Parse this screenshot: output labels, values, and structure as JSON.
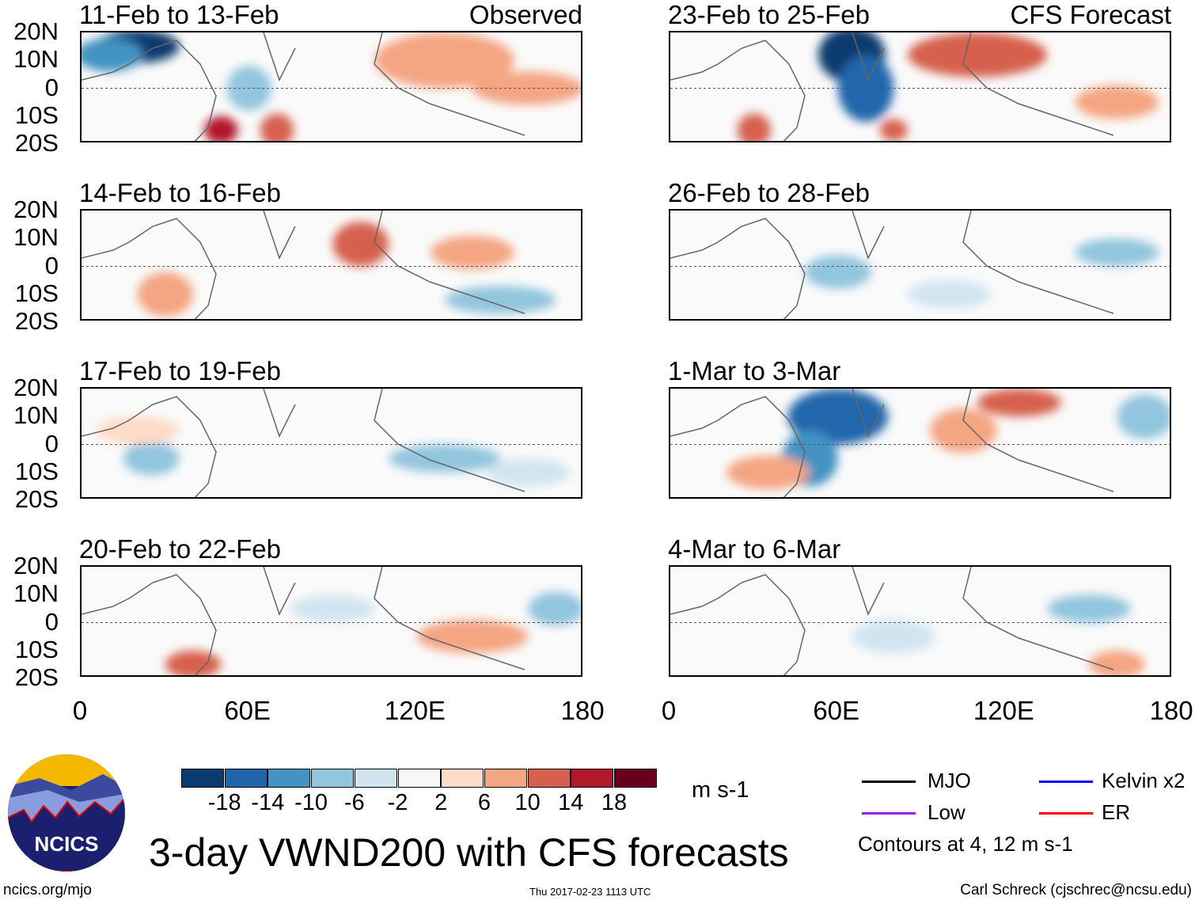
{
  "left_header": "Observed",
  "right_header": "CFS Forecast",
  "panels_left": [
    "11-Feb to 13-Feb",
    "14-Feb to 16-Feb",
    "17-Feb to 19-Feb",
    "20-Feb to 22-Feb"
  ],
  "panels_right": [
    "23-Feb to 25-Feb",
    "26-Feb to 28-Feb",
    "1-Mar to 3-Mar",
    "4-Mar to 6-Mar"
  ],
  "lat_ticks": [
    "20N",
    "10N",
    "0",
    "10S",
    "20S"
  ],
  "lon_ticks": [
    "0",
    "60E",
    "120E",
    "180"
  ],
  "colorbar": {
    "labels": [
      "-18",
      "-14",
      "-10",
      "-6",
      "-2",
      "2",
      "6",
      "10",
      "14",
      "18"
    ],
    "colors": [
      "#0b3a6e",
      "#2166ac",
      "#4393c3",
      "#92c5de",
      "#d1e5f0",
      "#f7f7f7",
      "#fddbc7",
      "#f4a582",
      "#d6604d",
      "#b2182b",
      "#67001f"
    ],
    "units": "m s-1"
  },
  "legend": [
    {
      "label": "MJO",
      "color": "#000000"
    },
    {
      "label": "Kelvin x2",
      "color": "#0000ff"
    },
    {
      "label": "Low",
      "color": "#a020f0"
    },
    {
      "label": "ER",
      "color": "#ff0000"
    }
  ],
  "contours_note": "Contours at 4, 12 m s-1",
  "title": "3-day VWND200 with CFS forecasts",
  "logo_text": "NCICS",
  "footer": {
    "url": "ncics.org/mjo",
    "timestamp": "Thu 2017-02-23 1113 UTC",
    "author": "Carl Schreck (cjschrec@ncsu.edu)"
  }
}
